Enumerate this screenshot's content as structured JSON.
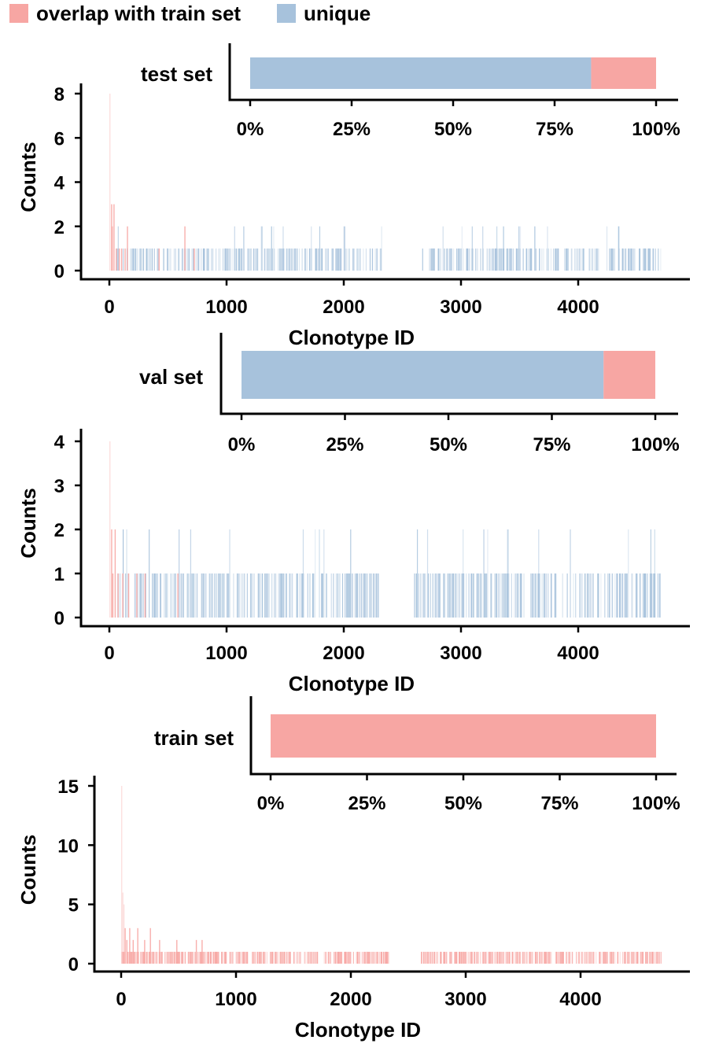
{
  "colors": {
    "overlap": "#f7a6a3",
    "unique": "#a7c2dc",
    "axis": "#000000"
  },
  "legend": [
    {
      "label": "overlap with train set",
      "color_key": "overlap"
    },
    {
      "label": "unique",
      "color_key": "unique"
    }
  ],
  "chart_data": [
    {
      "type": "bar",
      "orientation": "horizontal-stacked",
      "category": "test set",
      "segments": [
        {
          "legend": "unique",
          "percent": 84
        },
        {
          "legend": "overlap with train set",
          "percent": 16
        }
      ],
      "xlim": [
        0,
        100
      ],
      "xticks": [
        "0%",
        "25%",
        "50%",
        "75%",
        "100%"
      ]
    },
    {
      "type": "bar",
      "xlabel": "Clonotype ID",
      "ylabel": "Counts",
      "xlim": [
        -230,
        4900
      ],
      "ylim": [
        0,
        8
      ],
      "xticks": [
        "0",
        "1000",
        "2000",
        "3000",
        "4000"
      ],
      "yticks": [
        "0",
        "2",
        "4",
        "6",
        "8"
      ],
      "overlap_bars": [
        [
          0,
          8
        ],
        [
          15,
          3
        ],
        [
          20,
          2
        ],
        [
          35,
          3
        ],
        [
          55,
          1
        ],
        [
          80,
          1
        ],
        [
          100,
          1
        ],
        [
          130,
          1
        ],
        [
          150,
          2
        ],
        [
          420,
          1
        ],
        [
          640,
          2
        ],
        [
          720,
          1
        ]
      ],
      "unique_ranges": [
        [
          60,
          2320
        ],
        [
          2630,
          4700
        ]
      ],
      "unique_max": 2
    },
    {
      "type": "bar",
      "orientation": "horizontal-stacked",
      "category": "val set",
      "segments": [
        {
          "legend": "unique",
          "percent": 87.5
        },
        {
          "legend": "overlap with train set",
          "percent": 12.5
        }
      ],
      "xlim": [
        0,
        100
      ],
      "xticks": [
        "0%",
        "25%",
        "50%",
        "75%",
        "100%"
      ]
    },
    {
      "type": "bar",
      "xlabel": "Clonotype ID",
      "ylabel": "Counts",
      "xlim": [
        -230,
        4900
      ],
      "ylim": [
        0,
        4
      ],
      "xticks": [
        "0",
        "1000",
        "2000",
        "3000",
        "4000"
      ],
      "yticks": [
        "0",
        "1",
        "2",
        "3",
        "4"
      ],
      "overlap_bars": [
        [
          0,
          4
        ],
        [
          15,
          2
        ],
        [
          25,
          1
        ],
        [
          45,
          2
        ],
        [
          70,
          1
        ],
        [
          110,
          1
        ],
        [
          160,
          1
        ],
        [
          230,
          1
        ],
        [
          300,
          1
        ],
        [
          580,
          1
        ]
      ],
      "unique_ranges": [
        [
          60,
          2320
        ],
        [
          2600,
          4700
        ]
      ],
      "unique_max": 2
    },
    {
      "type": "bar",
      "orientation": "horizontal-stacked",
      "category": "train set",
      "segments": [
        {
          "legend": "overlap with train set",
          "percent": 100
        }
      ],
      "xlim": [
        0,
        100
      ],
      "xticks": [
        "0%",
        "25%",
        "50%",
        "75%",
        "100%"
      ]
    },
    {
      "type": "bar",
      "xlabel": "Clonotype ID",
      "ylabel": "Counts",
      "xlim": [
        -230,
        4900
      ],
      "ylim": [
        0,
        15
      ],
      "xticks": [
        "0",
        "1000",
        "2000",
        "3000",
        "4000"
      ],
      "yticks": [
        "0",
        "5",
        "10",
        "15"
      ],
      "overlap_bars": [
        [
          0,
          15
        ],
        [
          10,
          6
        ],
        [
          20,
          5
        ],
        [
          30,
          3
        ],
        [
          45,
          2
        ],
        [
          70,
          3
        ],
        [
          100,
          2
        ],
        [
          140,
          3
        ],
        [
          200,
          2
        ],
        [
          250,
          3
        ],
        [
          330,
          2
        ],
        [
          480,
          2
        ],
        [
          650,
          2
        ],
        [
          700,
          2
        ]
      ],
      "overlap_ranges": [
        [
          0,
          2330
        ],
        [
          2600,
          4700
        ]
      ],
      "overlap_max": 1
    }
  ]
}
